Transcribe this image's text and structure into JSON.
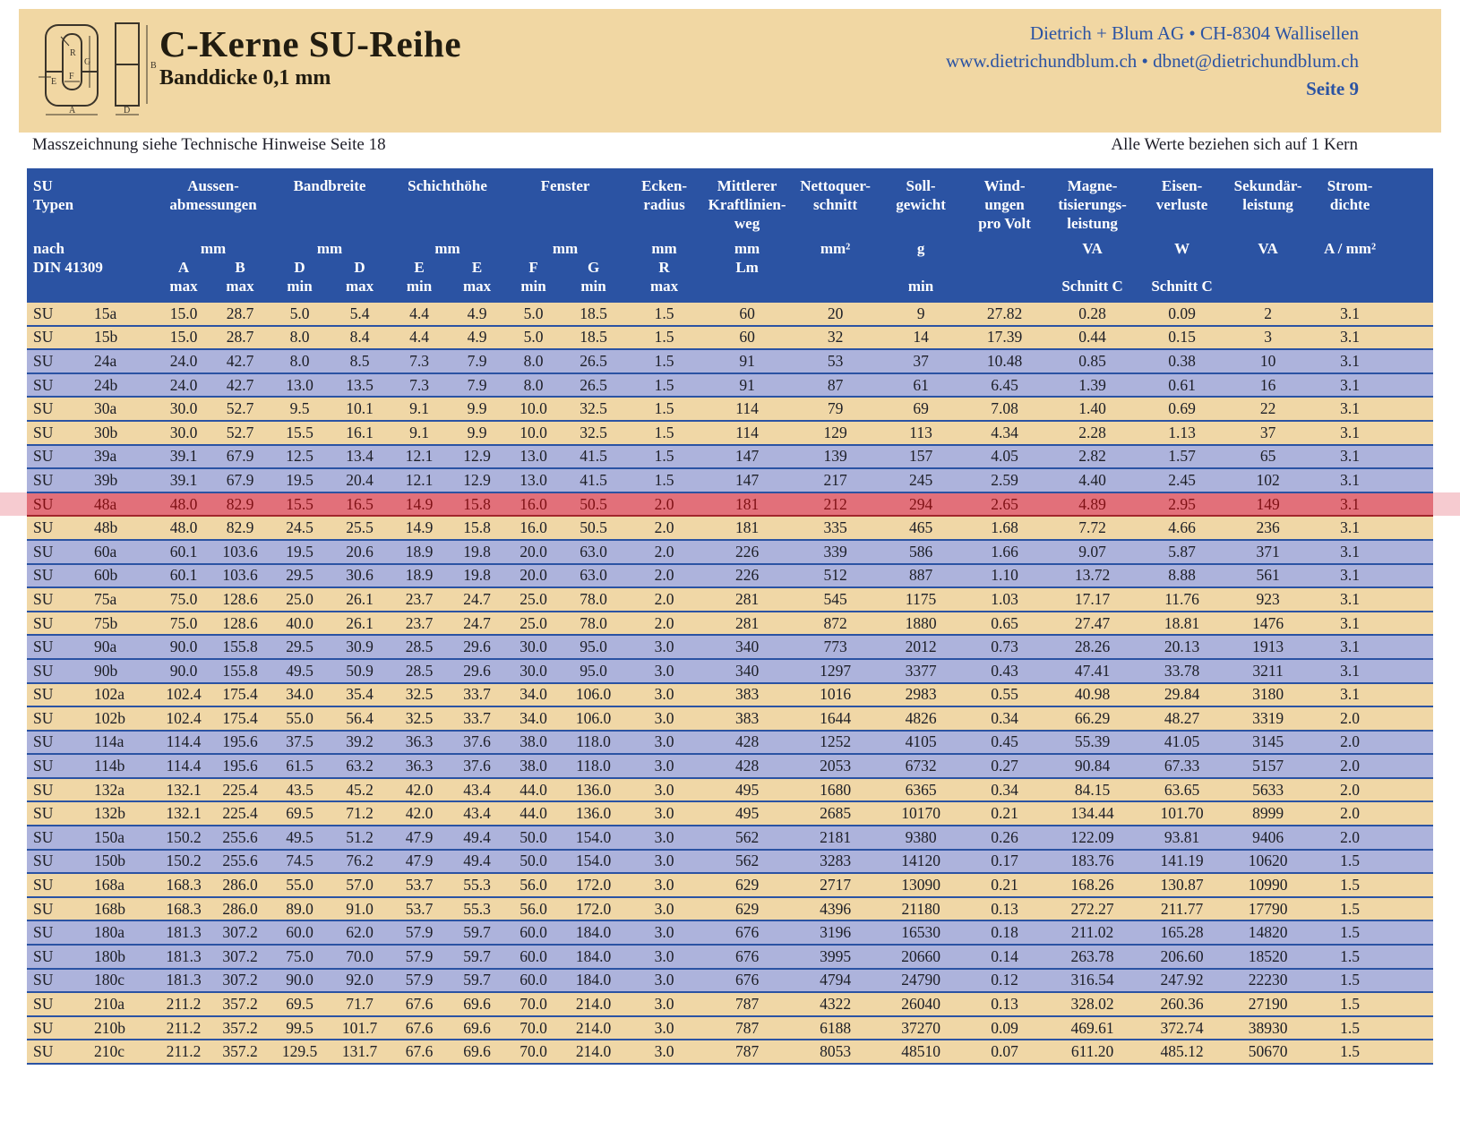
{
  "header": {
    "title": "C-Kerne SU-Reihe",
    "subtitle": "Banddicke 0,1 mm",
    "company_line1": "Dietrich + Blum AG • CH-8304 Wallisellen",
    "company_line2": "www.dietrichundblum.ch • dbnet@dietrichundblum.ch",
    "page_label": "Seite 9",
    "diagram_labels": {
      "R": "R",
      "G": "G",
      "F": "F",
      "E": "E",
      "A": "A",
      "B": "B",
      "D": "D"
    }
  },
  "notes": {
    "left": "Masszeichnung siehe Technische Hinweise Seite 18",
    "right": "Alle Werte beziehen sich auf 1 Kern"
  },
  "colors": {
    "banner_tan": "#f1d7a3",
    "header_blue": "#2b53a3",
    "row_tan": "#f0d7a6",
    "row_blue": "#adb3dc",
    "row_highlight_red": "#e2707a",
    "highlight_text_red": "#7e1014",
    "margin_pink": "#f6cbd0",
    "text_dark": "#1c1e26",
    "company_blue": "#2b53a3"
  },
  "table": {
    "header": {
      "su": {
        "group": "SU\nTypen",
        "unit": "nach",
        "letter": "DIN 41309",
        "minmax": ""
      },
      "groups": [
        {
          "label": "Aussen-\nabmessungen",
          "span": 2,
          "unit": "mm",
          "cols": [
            {
              "letter": "A",
              "mm": "max"
            },
            {
              "letter": "B",
              "mm": "max"
            }
          ]
        },
        {
          "label": "Bandbreite",
          "span": 2,
          "unit": "mm",
          "cols": [
            {
              "letter": "D",
              "mm": "min"
            },
            {
              "letter": "D",
              "mm": "max"
            }
          ]
        },
        {
          "label": "Schichthöhe",
          "span": 2,
          "unit": "mm",
          "cols": [
            {
              "letter": "E",
              "mm": "min"
            },
            {
              "letter": "E",
              "mm": "max"
            }
          ]
        },
        {
          "label": "Fenster",
          "span": 2,
          "unit": "mm",
          "cols": [
            {
              "letter": "F",
              "mm": "min"
            },
            {
              "letter": "G",
              "mm": "min"
            }
          ]
        },
        {
          "label": "Ecken-\nradius",
          "span": 1,
          "unit": "mm",
          "cols": [
            {
              "letter": "R",
              "mm": "max"
            }
          ]
        },
        {
          "label": "Mittlerer\nKraftlinien-\nweg",
          "span": 1,
          "unit": "mm",
          "cols": [
            {
              "letter": "Lm",
              "mm": ""
            }
          ]
        },
        {
          "label": "Nettoquer-\nschnitt",
          "span": 1,
          "unit": "mm²",
          "cols": [
            {
              "letter": "",
              "mm": ""
            }
          ]
        },
        {
          "label": "Soll-\ngewicht",
          "span": 1,
          "unit": "g",
          "cols": [
            {
              "letter": "",
              "mm": "min"
            }
          ]
        },
        {
          "label": "Wind-\nungen\npro Volt",
          "span": 1,
          "unit": "",
          "cols": [
            {
              "letter": "",
              "mm": ""
            }
          ]
        },
        {
          "label": "Magne-\ntisierungs-\nleistung",
          "span": 1,
          "unit": "VA",
          "cols": [
            {
              "letter": "",
              "mm": "Schnitt C"
            }
          ]
        },
        {
          "label": "Eisen-\nverluste",
          "span": 1,
          "unit": "W",
          "cols": [
            {
              "letter": "",
              "mm": "Schnitt C"
            }
          ]
        },
        {
          "label": "Sekundär-\nleistung",
          "span": 1,
          "unit": "VA",
          "cols": [
            {
              "letter": "",
              "mm": ""
            }
          ]
        },
        {
          "label": "Strom-\ndichte",
          "span": 1,
          "unit": "A / mm²",
          "cols": [
            {
              "letter": "",
              "mm": ""
            }
          ]
        }
      ]
    },
    "rows": [
      {
        "prefix": "SU",
        "size": "15a",
        "tone": "tan",
        "highlight": false,
        "values": [
          "15.0",
          "28.7",
          "5.0",
          "5.4",
          "4.4",
          "4.9",
          "5.0",
          "18.5",
          "1.5",
          "60",
          "20",
          "9",
          "27.82",
          "0.28",
          "0.09",
          "2",
          "3.1"
        ]
      },
      {
        "prefix": "SU",
        "size": "15b",
        "tone": "tan",
        "highlight": false,
        "values": [
          "15.0",
          "28.7",
          "8.0",
          "8.4",
          "4.4",
          "4.9",
          "5.0",
          "18.5",
          "1.5",
          "60",
          "32",
          "14",
          "17.39",
          "0.44",
          "0.15",
          "3",
          "3.1"
        ]
      },
      {
        "prefix": "SU",
        "size": "24a",
        "tone": "blue",
        "highlight": false,
        "values": [
          "24.0",
          "42.7",
          "8.0",
          "8.5",
          "7.3",
          "7.9",
          "8.0",
          "26.5",
          "1.5",
          "91",
          "53",
          "37",
          "10.48",
          "0.85",
          "0.38",
          "10",
          "3.1"
        ]
      },
      {
        "prefix": "SU",
        "size": "24b",
        "tone": "blue",
        "highlight": false,
        "values": [
          "24.0",
          "42.7",
          "13.0",
          "13.5",
          "7.3",
          "7.9",
          "8.0",
          "26.5",
          "1.5",
          "91",
          "87",
          "61",
          "6.45",
          "1.39",
          "0.61",
          "16",
          "3.1"
        ]
      },
      {
        "prefix": "SU",
        "size": "30a",
        "tone": "tan",
        "highlight": false,
        "values": [
          "30.0",
          "52.7",
          "9.5",
          "10.1",
          "9.1",
          "9.9",
          "10.0",
          "32.5",
          "1.5",
          "114",
          "79",
          "69",
          "7.08",
          "1.40",
          "0.69",
          "22",
          "3.1"
        ]
      },
      {
        "prefix": "SU",
        "size": "30b",
        "tone": "tan",
        "highlight": false,
        "values": [
          "30.0",
          "52.7",
          "15.5",
          "16.1",
          "9.1",
          "9.9",
          "10.0",
          "32.5",
          "1.5",
          "114",
          "129",
          "113",
          "4.34",
          "2.28",
          "1.13",
          "37",
          "3.1"
        ]
      },
      {
        "prefix": "SU",
        "size": "39a",
        "tone": "blue",
        "highlight": false,
        "values": [
          "39.1",
          "67.9",
          "12.5",
          "13.4",
          "12.1",
          "12.9",
          "13.0",
          "41.5",
          "1.5",
          "147",
          "139",
          "157",
          "4.05",
          "2.82",
          "1.57",
          "65",
          "3.1"
        ]
      },
      {
        "prefix": "SU",
        "size": "39b",
        "tone": "blue",
        "highlight": false,
        "values": [
          "39.1",
          "67.9",
          "19.5",
          "20.4",
          "12.1",
          "12.9",
          "13.0",
          "41.5",
          "1.5",
          "147",
          "217",
          "245",
          "2.59",
          "4.40",
          "2.45",
          "102",
          "3.1"
        ]
      },
      {
        "prefix": "SU",
        "size": "48a",
        "tone": "red",
        "highlight": true,
        "values": [
          "48.0",
          "82.9",
          "15.5",
          "16.5",
          "14.9",
          "15.8",
          "16.0",
          "50.5",
          "2.0",
          "181",
          "212",
          "294",
          "2.65",
          "4.89",
          "2.95",
          "149",
          "3.1"
        ]
      },
      {
        "prefix": "SU",
        "size": "48b",
        "tone": "tan",
        "highlight": false,
        "values": [
          "48.0",
          "82.9",
          "24.5",
          "25.5",
          "14.9",
          "15.8",
          "16.0",
          "50.5",
          "2.0",
          "181",
          "335",
          "465",
          "1.68",
          "7.72",
          "4.66",
          "236",
          "3.1"
        ]
      },
      {
        "prefix": "SU",
        "size": "60a",
        "tone": "blue",
        "highlight": false,
        "values": [
          "60.1",
          "103.6",
          "19.5",
          "20.6",
          "18.9",
          "19.8",
          "20.0",
          "63.0",
          "2.0",
          "226",
          "339",
          "586",
          "1.66",
          "9.07",
          "5.87",
          "371",
          "3.1"
        ]
      },
      {
        "prefix": "SU",
        "size": "60b",
        "tone": "blue",
        "highlight": false,
        "values": [
          "60.1",
          "103.6",
          "29.5",
          "30.6",
          "18.9",
          "19.8",
          "20.0",
          "63.0",
          "2.0",
          "226",
          "512",
          "887",
          "1.10",
          "13.72",
          "8.88",
          "561",
          "3.1"
        ]
      },
      {
        "prefix": "SU",
        "size": "75a",
        "tone": "tan",
        "highlight": false,
        "values": [
          "75.0",
          "128.6",
          "25.0",
          "26.1",
          "23.7",
          "24.7",
          "25.0",
          "78.0",
          "2.0",
          "281",
          "545",
          "1175",
          "1.03",
          "17.17",
          "11.76",
          "923",
          "3.1"
        ]
      },
      {
        "prefix": "SU",
        "size": "75b",
        "tone": "tan",
        "highlight": false,
        "values": [
          "75.0",
          "128.6",
          "40.0",
          "26.1",
          "23.7",
          "24.7",
          "25.0",
          "78.0",
          "2.0",
          "281",
          "872",
          "1880",
          "0.65",
          "27.47",
          "18.81",
          "1476",
          "3.1"
        ]
      },
      {
        "prefix": "SU",
        "size": "90a",
        "tone": "blue",
        "highlight": false,
        "values": [
          "90.0",
          "155.8",
          "29.5",
          "30.9",
          "28.5",
          "29.6",
          "30.0",
          "95.0",
          "3.0",
          "340",
          "773",
          "2012",
          "0.73",
          "28.26",
          "20.13",
          "1913",
          "3.1"
        ]
      },
      {
        "prefix": "SU",
        "size": "90b",
        "tone": "blue",
        "highlight": false,
        "values": [
          "90.0",
          "155.8",
          "49.5",
          "50.9",
          "28.5",
          "29.6",
          "30.0",
          "95.0",
          "3.0",
          "340",
          "1297",
          "3377",
          "0.43",
          "47.41",
          "33.78",
          "3211",
          "3.1"
        ]
      },
      {
        "prefix": "SU",
        "size": "102a",
        "tone": "tan",
        "highlight": false,
        "values": [
          "102.4",
          "175.4",
          "34.0",
          "35.4",
          "32.5",
          "33.7",
          "34.0",
          "106.0",
          "3.0",
          "383",
          "1016",
          "2983",
          "0.55",
          "40.98",
          "29.84",
          "3180",
          "3.1"
        ]
      },
      {
        "prefix": "SU",
        "size": "102b",
        "tone": "tan",
        "highlight": false,
        "values": [
          "102.4",
          "175.4",
          "55.0",
          "56.4",
          "32.5",
          "33.7",
          "34.0",
          "106.0",
          "3.0",
          "383",
          "1644",
          "4826",
          "0.34",
          "66.29",
          "48.27",
          "3319",
          "2.0"
        ]
      },
      {
        "prefix": "SU",
        "size": "114a",
        "tone": "blue",
        "highlight": false,
        "values": [
          "114.4",
          "195.6",
          "37.5",
          "39.2",
          "36.3",
          "37.6",
          "38.0",
          "118.0",
          "3.0",
          "428",
          "1252",
          "4105",
          "0.45",
          "55.39",
          "41.05",
          "3145",
          "2.0"
        ]
      },
      {
        "prefix": "SU",
        "size": "114b",
        "tone": "blue",
        "highlight": false,
        "values": [
          "114.4",
          "195.6",
          "61.5",
          "63.2",
          "36.3",
          "37.6",
          "38.0",
          "118.0",
          "3.0",
          "428",
          "2053",
          "6732",
          "0.27",
          "90.84",
          "67.33",
          "5157",
          "2.0"
        ]
      },
      {
        "prefix": "SU",
        "size": "132a",
        "tone": "tan",
        "highlight": false,
        "values": [
          "132.1",
          "225.4",
          "43.5",
          "45.2",
          "42.0",
          "43.4",
          "44.0",
          "136.0",
          "3.0",
          "495",
          "1680",
          "6365",
          "0.34",
          "84.15",
          "63.65",
          "5633",
          "2.0"
        ]
      },
      {
        "prefix": "SU",
        "size": "132b",
        "tone": "tan",
        "highlight": false,
        "values": [
          "132.1",
          "225.4",
          "69.5",
          "71.2",
          "42.0",
          "43.4",
          "44.0",
          "136.0",
          "3.0",
          "495",
          "2685",
          "10170",
          "0.21",
          "134.44",
          "101.70",
          "8999",
          "2.0"
        ]
      },
      {
        "prefix": "SU",
        "size": "150a",
        "tone": "blue",
        "highlight": false,
        "values": [
          "150.2",
          "255.6",
          "49.5",
          "51.2",
          "47.9",
          "49.4",
          "50.0",
          "154.0",
          "3.0",
          "562",
          "2181",
          "9380",
          "0.26",
          "122.09",
          "93.81",
          "9406",
          "2.0"
        ]
      },
      {
        "prefix": "SU",
        "size": "150b",
        "tone": "blue",
        "highlight": false,
        "values": [
          "150.2",
          "255.6",
          "74.5",
          "76.2",
          "47.9",
          "49.4",
          "50.0",
          "154.0",
          "3.0",
          "562",
          "3283",
          "14120",
          "0.17",
          "183.76",
          "141.19",
          "10620",
          "1.5"
        ]
      },
      {
        "prefix": "SU",
        "size": "168a",
        "tone": "tan",
        "highlight": false,
        "values": [
          "168.3",
          "286.0",
          "55.0",
          "57.0",
          "53.7",
          "55.3",
          "56.0",
          "172.0",
          "3.0",
          "629",
          "2717",
          "13090",
          "0.21",
          "168.26",
          "130.87",
          "10990",
          "1.5"
        ]
      },
      {
        "prefix": "SU",
        "size": "168b",
        "tone": "tan",
        "highlight": false,
        "values": [
          "168.3",
          "286.0",
          "89.0",
          "91.0",
          "53.7",
          "55.3",
          "56.0",
          "172.0",
          "3.0",
          "629",
          "4396",
          "21180",
          "0.13",
          "272.27",
          "211.77",
          "17790",
          "1.5"
        ]
      },
      {
        "prefix": "SU",
        "size": "180a",
        "tone": "blue",
        "highlight": false,
        "values": [
          "181.3",
          "307.2",
          "60.0",
          "62.0",
          "57.9",
          "59.7",
          "60.0",
          "184.0",
          "3.0",
          "676",
          "3196",
          "16530",
          "0.18",
          "211.02",
          "165.28",
          "14820",
          "1.5"
        ]
      },
      {
        "prefix": "SU",
        "size": "180b",
        "tone": "blue",
        "highlight": false,
        "values": [
          "181.3",
          "307.2",
          "75.0",
          "70.0",
          "57.9",
          "59.7",
          "60.0",
          "184.0",
          "3.0",
          "676",
          "3995",
          "20660",
          "0.14",
          "263.78",
          "206.60",
          "18520",
          "1.5"
        ]
      },
      {
        "prefix": "SU",
        "size": "180c",
        "tone": "blue",
        "highlight": false,
        "values": [
          "181.3",
          "307.2",
          "90.0",
          "92.0",
          "57.9",
          "59.7",
          "60.0",
          "184.0",
          "3.0",
          "676",
          "4794",
          "24790",
          "0.12",
          "316.54",
          "247.92",
          "22230",
          "1.5"
        ]
      },
      {
        "prefix": "SU",
        "size": "210a",
        "tone": "tan",
        "highlight": false,
        "values": [
          "211.2",
          "357.2",
          "69.5",
          "71.7",
          "67.6",
          "69.6",
          "70.0",
          "214.0",
          "3.0",
          "787",
          "4322",
          "26040",
          "0.13",
          "328.02",
          "260.36",
          "27190",
          "1.5"
        ]
      },
      {
        "prefix": "SU",
        "size": "210b",
        "tone": "tan",
        "highlight": false,
        "values": [
          "211.2",
          "357.2",
          "99.5",
          "101.7",
          "67.6",
          "69.6",
          "70.0",
          "214.0",
          "3.0",
          "787",
          "6188",
          "37270",
          "0.09",
          "469.61",
          "372.74",
          "38930",
          "1.5"
        ]
      },
      {
        "prefix": "SU",
        "size": "210c",
        "tone": "tan",
        "highlight": false,
        "values": [
          "211.2",
          "357.2",
          "129.5",
          "131.7",
          "67.6",
          "69.6",
          "70.0",
          "214.0",
          "3.0",
          "787",
          "8053",
          "48510",
          "0.07",
          "611.20",
          "485.12",
          "50670",
          "1.5"
        ]
      }
    ]
  }
}
